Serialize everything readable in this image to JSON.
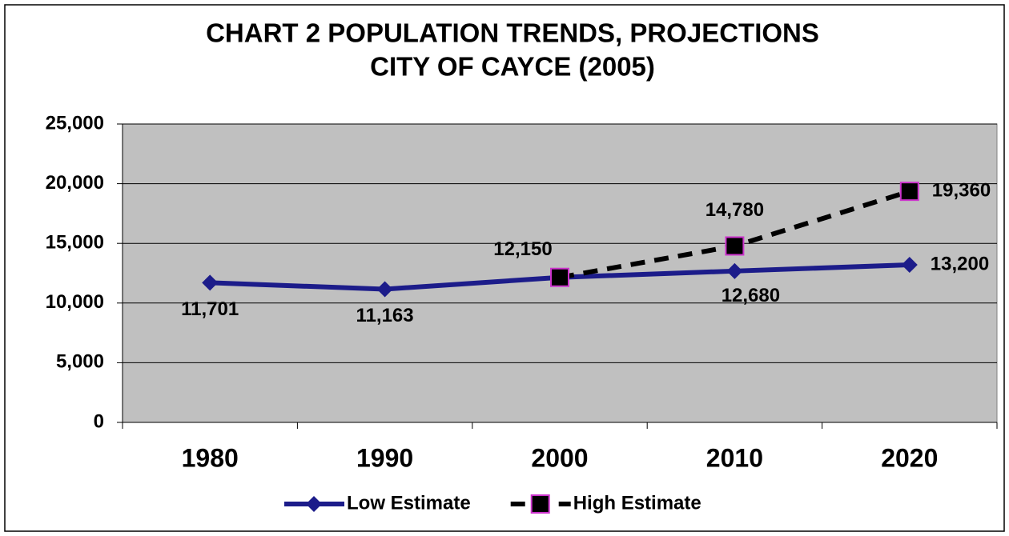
{
  "chart_data": {
    "type": "line",
    "title": [
      "CHART 2 POPULATION TRENDS, PROJECTIONS",
      "CITY OF CAYCE (2005)"
    ],
    "categories": [
      "1980",
      "1990",
      "2000",
      "2010",
      "2020"
    ],
    "series": [
      {
        "name": "Low Estimate",
        "color": "#1c1c8a",
        "marker": "diamond",
        "dashed": false,
        "values": [
          11701,
          11163,
          12150,
          12680,
          13200
        ],
        "value_labels": [
          "11,701",
          "11,163",
          null,
          "12,680",
          "13,200"
        ]
      },
      {
        "name": "High Estimate",
        "color": "#000000",
        "marker": "square",
        "marker_edge": "#cc33cc",
        "dashed": true,
        "values": [
          null,
          null,
          12150,
          14780,
          19360
        ],
        "value_labels": [
          null,
          null,
          "12,150",
          "14,780",
          "19,360"
        ]
      }
    ],
    "ylim": [
      0,
      25000
    ],
    "yticks": [
      0,
      {
        "value": 5000,
        "label": "5,000"
      },
      {
        "value": 10000,
        "label": "10,000"
      },
      {
        "value": 15000,
        "label": "15,000"
      },
      {
        "value": 20000,
        "label": "20,000"
      },
      {
        "value": 25000,
        "label": "25,000"
      }
    ],
    "grid": true,
    "plot_background": "#c0c0c0",
    "legend": "bottom"
  }
}
